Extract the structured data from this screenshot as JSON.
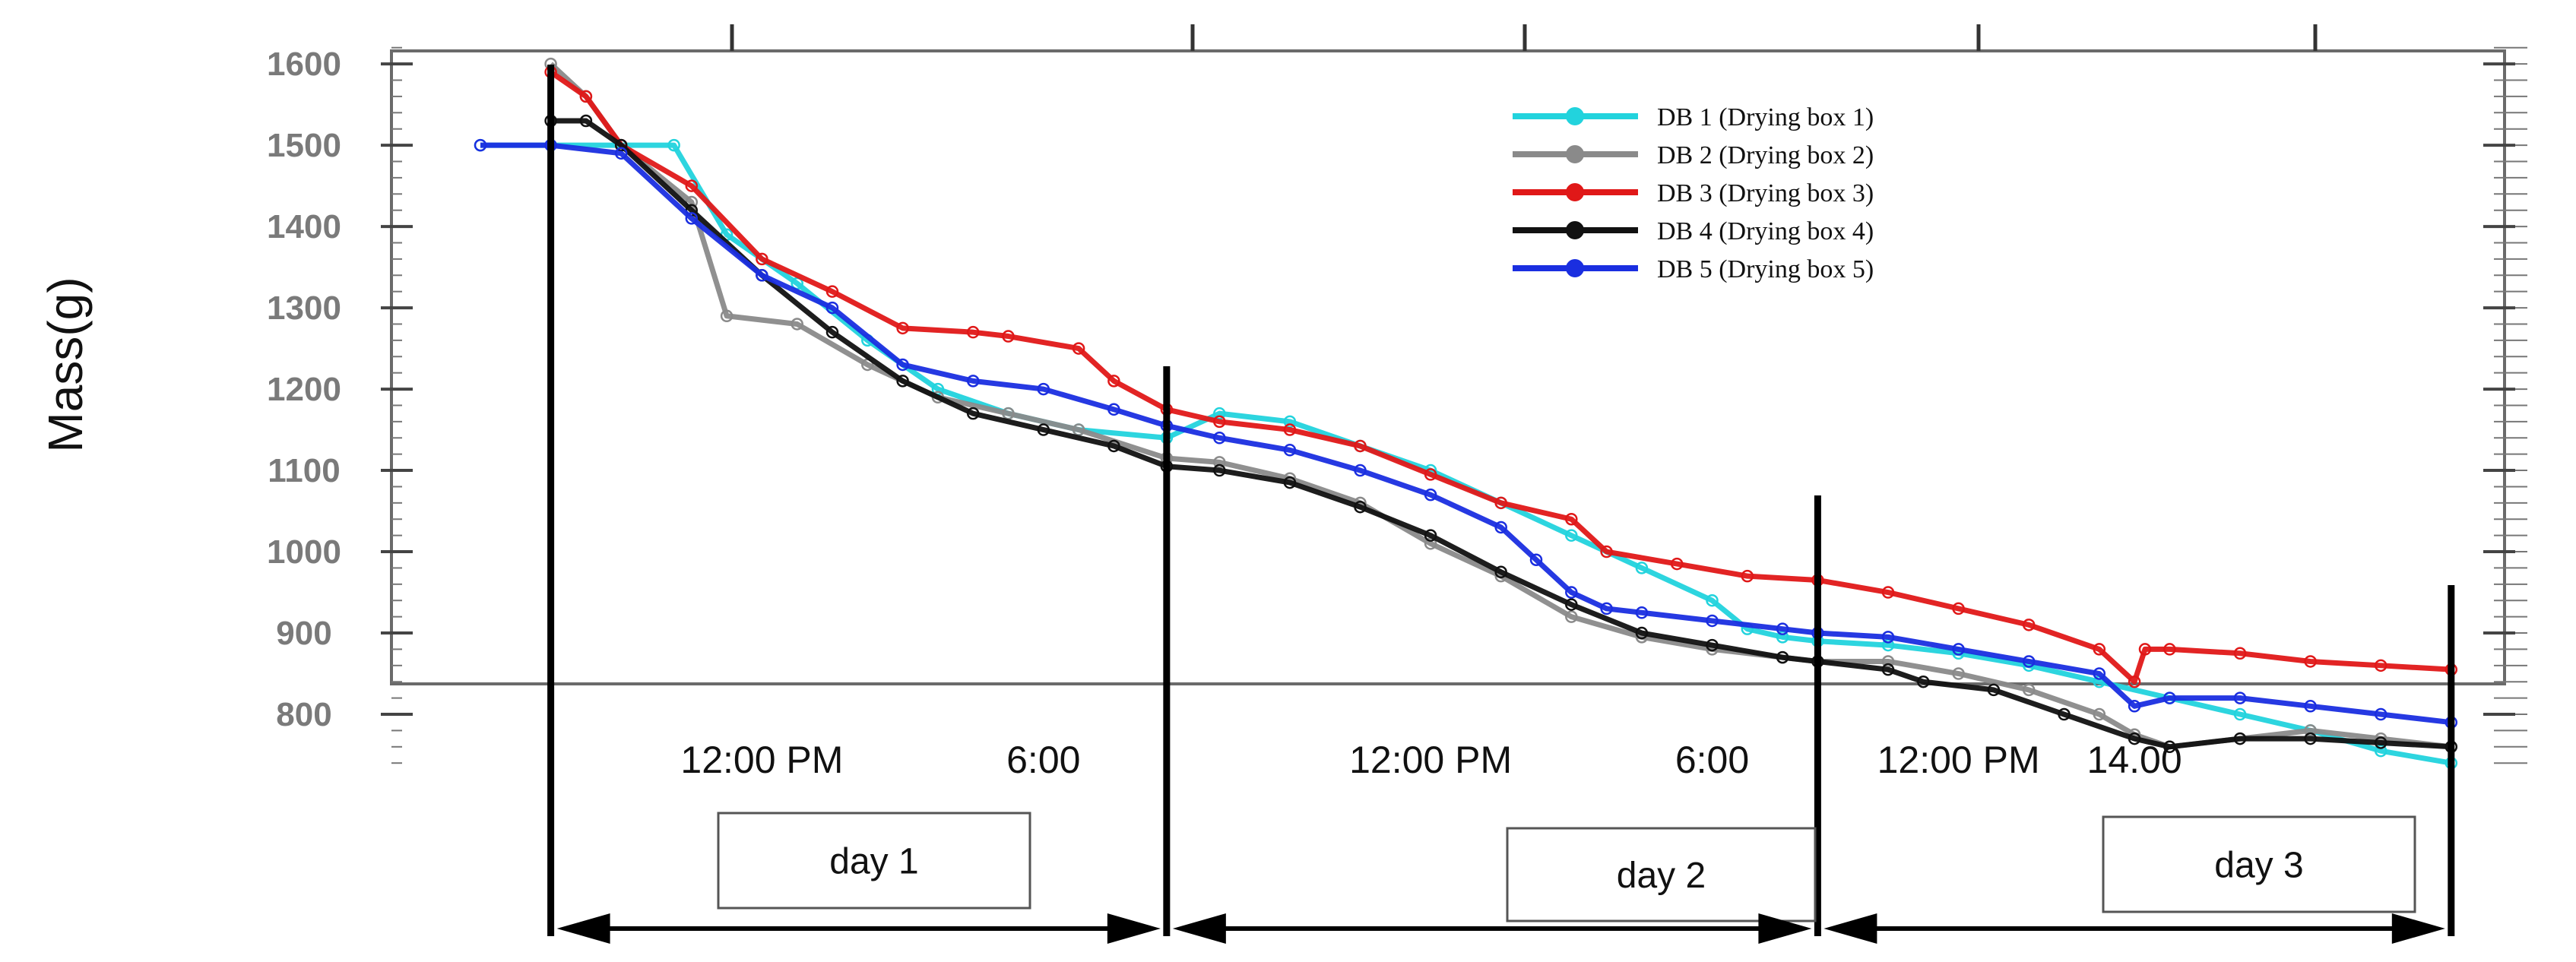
{
  "chart_data": {
    "type": "line",
    "title": "",
    "xlabel": "",
    "ylabel": "Mass(g)",
    "ylim": [
      720,
      1615
    ],
    "xlim": [
      0,
      59.5
    ],
    "yticks": [
      1600,
      1500,
      1400,
      1300,
      1200,
      1100,
      1000,
      900,
      800
    ],
    "x_tick_labels": [
      {
        "label": "12:00 PM",
        "x": 8
      },
      {
        "label": "6:00",
        "x": 16
      },
      {
        "label": "12:00 PM",
        "x": 27
      },
      {
        "label": "6:00",
        "x": 35
      },
      {
        "label": "12:00 PM",
        "x": 42
      },
      {
        "label": "14.00",
        "x": 47
      }
    ],
    "day_separators": [
      2,
      19.5,
      38,
      56
    ],
    "days": [
      {
        "label": "day 1",
        "start": 2,
        "end": 19.5
      },
      {
        "label": "day 2",
        "start": 19.5,
        "end": 38
      },
      {
        "label": "day 3",
        "start": 38,
        "end": 56
      }
    ],
    "legend_position": "top-right",
    "series": [
      {
        "name": "DB 1 (Drying box 1)",
        "color": "#22d3dd",
        "x": [
          0,
          2,
          4,
          5.5,
          7,
          9,
          11,
          13,
          15,
          17,
          19.5,
          21,
          23,
          25,
          27,
          29,
          31,
          33,
          35,
          36,
          37,
          38,
          40,
          42,
          44,
          46,
          48,
          50,
          52,
          54,
          56
        ],
        "y": [
          1500,
          1500,
          1500,
          1500,
          1390,
          1330,
          1260,
          1200,
          1170,
          1150,
          1140,
          1170,
          1160,
          1130,
          1100,
          1060,
          1020,
          980,
          940,
          905,
          895,
          890,
          885,
          875,
          860,
          840,
          820,
          800,
          780,
          755,
          740
        ]
      },
      {
        "name": "DB 2 (Drying box 2)",
        "color": "#8a8a8a",
        "x": [
          2,
          3,
          4,
          6,
          7,
          9,
          11,
          13,
          15,
          17,
          19.5,
          21,
          23,
          25,
          27,
          29,
          31,
          33,
          35,
          37,
          38,
          40,
          42,
          44,
          46,
          47,
          48,
          50,
          52,
          54,
          56
        ],
        "y": [
          1600,
          1560,
          1500,
          1430,
          1290,
          1280,
          1230,
          1190,
          1170,
          1150,
          1115,
          1110,
          1090,
          1060,
          1010,
          970,
          920,
          895,
          880,
          870,
          865,
          865,
          850,
          830,
          800,
          775,
          760,
          770,
          780,
          770,
          760
        ]
      },
      {
        "name": "DB 3 (Drying box 3)",
        "color": "#e01818",
        "x": [
          2,
          3,
          4,
          6,
          8,
          10,
          12,
          14,
          15,
          17,
          18,
          19.5,
          21,
          23,
          25,
          27,
          29,
          31,
          32,
          34,
          36,
          38,
          40,
          42,
          44,
          46,
          47,
          47.3,
          48,
          50,
          52,
          54,
          56
        ],
        "y": [
          1590,
          1560,
          1500,
          1450,
          1360,
          1320,
          1275,
          1270,
          1265,
          1250,
          1210,
          1175,
          1160,
          1150,
          1130,
          1095,
          1060,
          1040,
          1000,
          985,
          970,
          965,
          950,
          930,
          910,
          880,
          840,
          880,
          880,
          875,
          865,
          860,
          855
        ]
      },
      {
        "name": "DB 4 (Drying box 4)",
        "color": "#111111",
        "x": [
          2,
          3,
          4,
          6,
          8,
          10,
          12,
          14,
          16,
          18,
          19.5,
          21,
          23,
          25,
          27,
          29,
          31,
          33,
          35,
          37,
          38,
          40,
          41,
          43,
          45,
          47,
          48,
          50,
          52,
          54,
          56
        ],
        "y": [
          1530,
          1530,
          1500,
          1420,
          1340,
          1270,
          1210,
          1170,
          1150,
          1130,
          1105,
          1100,
          1085,
          1055,
          1020,
          975,
          935,
          900,
          885,
          870,
          865,
          855,
          840,
          830,
          800,
          770,
          760,
          770,
          770,
          765,
          760
        ]
      },
      {
        "name": "DB 5 (Drying box 5)",
        "color": "#1a2ee0",
        "x": [
          0,
          2,
          4,
          6,
          8,
          10,
          12,
          14,
          16,
          18,
          19.5,
          21,
          23,
          25,
          27,
          29,
          30,
          31,
          32,
          33,
          35,
          37,
          38,
          40,
          42,
          44,
          46,
          47,
          48,
          50,
          52,
          54,
          56
        ],
        "y": [
          1500,
          1500,
          1490,
          1410,
          1340,
          1300,
          1230,
          1210,
          1200,
          1175,
          1155,
          1140,
          1125,
          1100,
          1070,
          1030,
          990,
          950,
          930,
          925,
          915,
          905,
          900,
          895,
          880,
          865,
          850,
          810,
          820,
          820,
          810,
          800,
          790
        ]
      }
    ]
  }
}
